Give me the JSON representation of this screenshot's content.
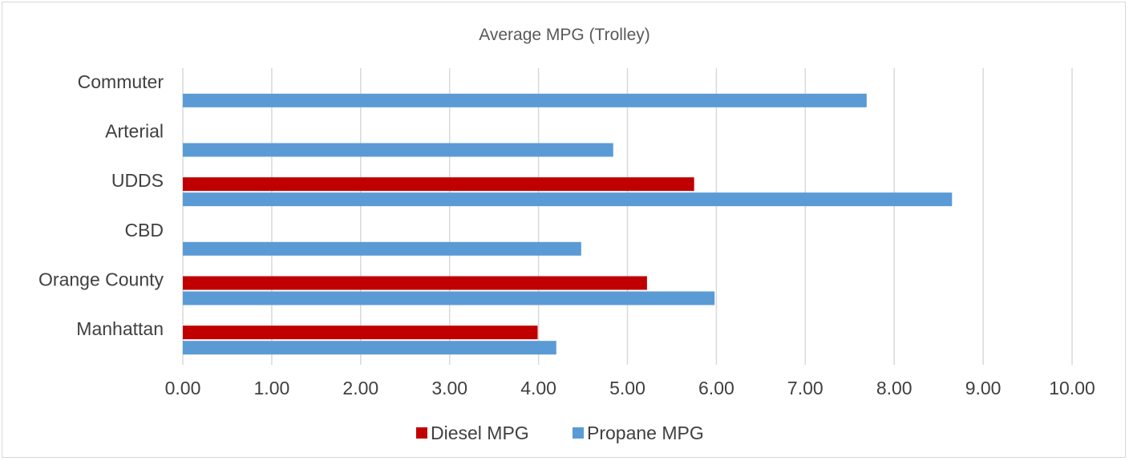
{
  "chart_data": {
    "type": "bar",
    "orientation": "horizontal",
    "title": "Average MPG (Trolley)",
    "categories": [
      "Commuter",
      "Arterial",
      "UDDS",
      "CBD",
      "Orange County",
      "Manhattan"
    ],
    "series": [
      {
        "name": "Diesel MPG",
        "color": "#c00000",
        "values": [
          null,
          null,
          5.75,
          null,
          5.22,
          3.99
        ]
      },
      {
        "name": "Propane MPG",
        "color": "#5b9bd5",
        "values": [
          7.69,
          4.84,
          8.65,
          4.48,
          5.98,
          4.2
        ]
      }
    ],
    "xlim": [
      0,
      10
    ],
    "x_ticks": [
      "0.00",
      "1.00",
      "2.00",
      "3.00",
      "4.00",
      "5.00",
      "6.00",
      "7.00",
      "8.00",
      "9.00",
      "10.00"
    ],
    "grid": true,
    "legend_position": "bottom"
  }
}
